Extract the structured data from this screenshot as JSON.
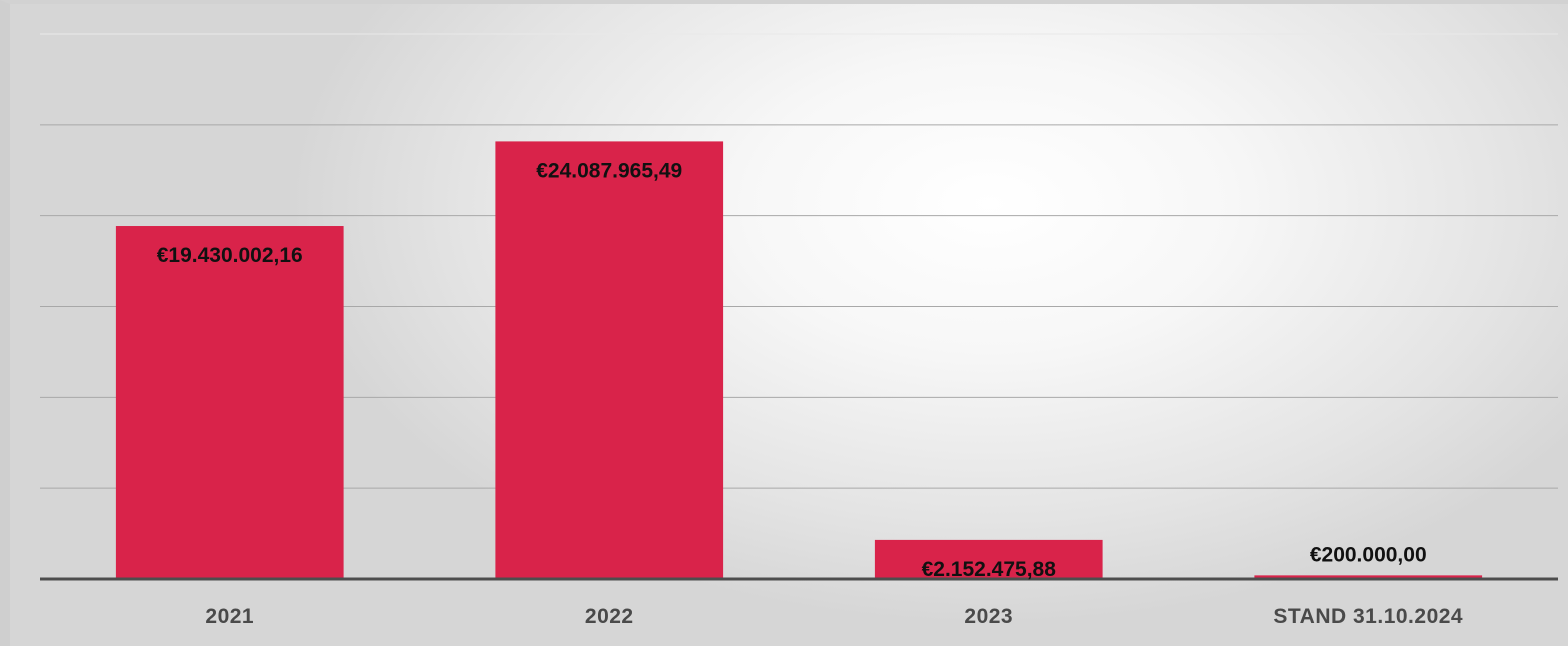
{
  "chart_data": {
    "type": "bar",
    "title": "",
    "xlabel": "",
    "ylabel": "",
    "categories": [
      "2021",
      "2022",
      "2023",
      "STAND 31.10.2024"
    ],
    "values": [
      19430002.16,
      24087965.49,
      2152475.88,
      200000.0
    ],
    "value_labels": [
      "€19.430.002,16",
      "€24.087.965,49",
      "€2.152.475,88",
      "€200.000,00"
    ],
    "ylim": [
      0,
      30000000
    ],
    "gridlines": [
      5000000,
      10000000,
      15000000,
      20000000,
      25000000,
      30000000
    ],
    "grid": true,
    "y_tick_labels_visible": false,
    "legend": "none",
    "colors": {
      "bar": "#d9234a",
      "gridline": "#a8a8a8",
      "axis": "#4d4d4d",
      "value_text": "#111111",
      "tick_text": "#4a4a4a"
    }
  }
}
